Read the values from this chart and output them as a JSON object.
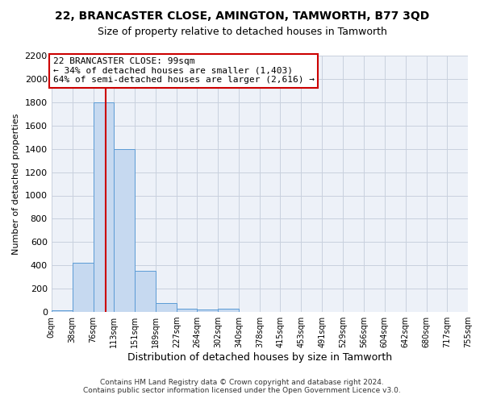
{
  "title": "22, BRANCASTER CLOSE, AMINGTON, TAMWORTH, B77 3QD",
  "subtitle": "Size of property relative to detached houses in Tamworth",
  "xlabel": "Distribution of detached houses by size in Tamworth",
  "ylabel": "Number of detached properties",
  "footer_line1": "Contains HM Land Registry data © Crown copyright and database right 2024.",
  "footer_line2": "Contains public sector information licensed under the Open Government Licence v3.0.",
  "bin_edges": [
    0,
    38,
    76,
    113,
    151,
    189,
    227,
    264,
    302,
    340,
    378,
    415,
    453,
    491,
    529,
    566,
    604,
    642,
    680,
    717,
    755
  ],
  "bar_heights": [
    15,
    420,
    1800,
    1400,
    350,
    75,
    25,
    20,
    25,
    0,
    0,
    0,
    0,
    0,
    0,
    0,
    0,
    0,
    0,
    0
  ],
  "bar_color": "#c6d9f0",
  "bar_edge_color": "#5b9bd5",
  "grid_color": "#c8d0de",
  "subject_size": 99,
  "subject_line_color": "#cc0000",
  "ylim": [
    0,
    2200
  ],
  "annotation_line1": "22 BRANCASTER CLOSE: 99sqm",
  "annotation_line2": "← 34% of detached houses are smaller (1,403)",
  "annotation_line3": "64% of semi-detached houses are larger (2,616) →",
  "annotation_box_color": "#ffffff",
  "annotation_box_edge_color": "#cc0000",
  "bg_color": "#ffffff",
  "plot_bg_color": "#edf1f8"
}
